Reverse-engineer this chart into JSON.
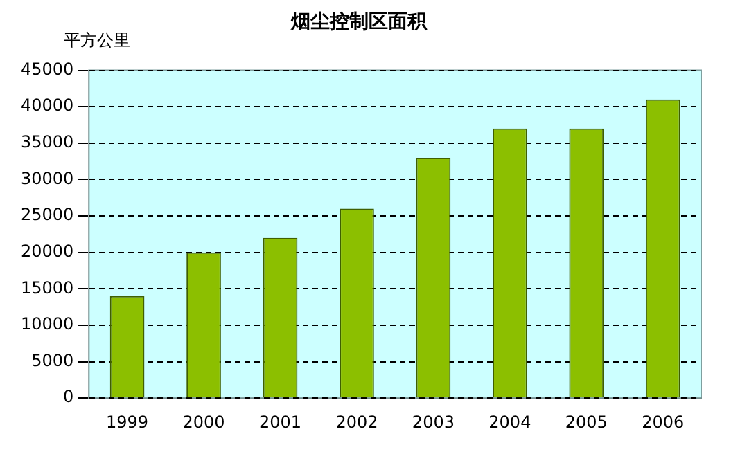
{
  "chart_data": {
    "type": "bar",
    "title": "烟尘控制区面积",
    "ylabel": "平方公里",
    "categories": [
      "1999",
      "2000",
      "2001",
      "2002",
      "2003",
      "2004",
      "2005",
      "2006"
    ],
    "values": [
      14000,
      20000,
      22000,
      26000,
      33000,
      37000,
      37000,
      41000
    ],
    "color": "#8cbf00",
    "ylim": [
      0,
      45000
    ],
    "yticks": [
      0,
      5000,
      10000,
      15000,
      20000,
      25000,
      30000,
      35000,
      40000,
      45000
    ],
    "grid": "y",
    "legend": false
  }
}
